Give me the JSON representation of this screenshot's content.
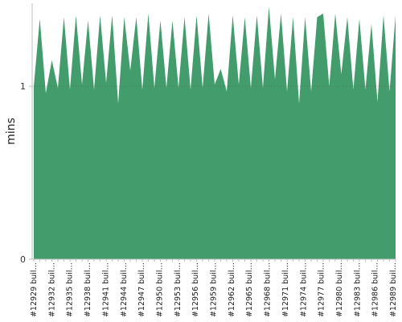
{
  "chart_data": {
    "type": "area",
    "ylabel": "mins",
    "ylim": [
      0,
      1.48
    ],
    "yticks": [
      0,
      1
    ],
    "color": "#439c6c",
    "grid_line_at": 1,
    "x_tick_labels": [
      "#12929 buil…",
      "#12932 buil…",
      "#12935 buil…",
      "#12938 buil…",
      "#12941 buil…",
      "#12944 buil…",
      "#12947 buil…",
      "#12950 buil…",
      "#12953 buil…",
      "#12956 buil…",
      "#12959 buil…",
      "#12962 buil…",
      "#12965 buil…",
      "#12968 buil…",
      "#12971 buil…",
      "#12974 buil…",
      "#12977 buil…",
      "#12980 buil…",
      "#12983 buil…",
      "#12986 buil…",
      "#12989 buil…"
    ],
    "values": [
      1.0,
      1.39,
      0.96,
      1.15,
      0.99,
      1.4,
      0.98,
      1.41,
      1.01,
      1.38,
      0.98,
      1.41,
      1.02,
      1.41,
      0.9,
      1.4,
      1.09,
      1.4,
      0.98,
      1.42,
      0.99,
      1.38,
      0.99,
      1.38,
      0.99,
      1.4,
      0.98,
      1.41,
      0.99,
      1.42,
      1.01,
      1.1,
      0.97,
      1.41,
      1.01,
      1.4,
      0.99,
      1.41,
      0.99,
      1.46,
      1.04,
      1.42,
      0.97,
      1.4,
      0.9,
      1.4,
      0.97,
      1.4,
      1.42,
      1.0,
      1.42,
      1.07,
      1.4,
      0.98,
      1.39,
      0.98,
      1.36,
      0.91,
      1.41,
      0.97,
      1.41
    ]
  }
}
